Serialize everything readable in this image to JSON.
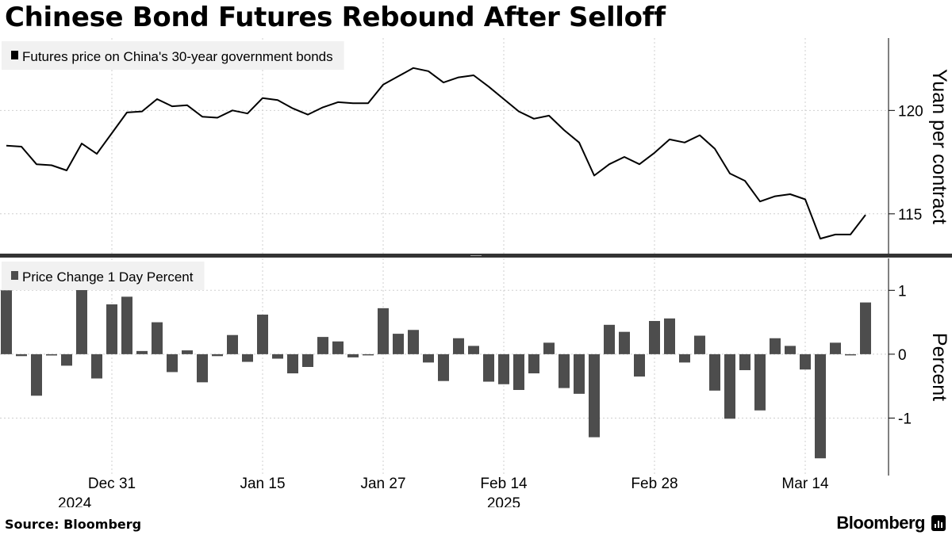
{
  "title": "Chinese Bond Futures Rebound After Selloff",
  "footer": {
    "source": "Source: Bloomberg",
    "brand": "Bloomberg"
  },
  "chart_data": [
    {
      "type": "line",
      "legend": "Futures price on China's 30-year government bonds",
      "ylabel": "Yuan per contract",
      "yticks": [
        115,
        120
      ],
      "ylim": [
        113,
        123.5
      ],
      "grid": true,
      "legend_position": "top-left",
      "color": "#000000",
      "values": [
        118.3,
        118.25,
        117.4,
        117.35,
        117.1,
        118.4,
        117.9,
        118.9,
        119.9,
        119.95,
        120.55,
        120.2,
        120.25,
        119.7,
        119.65,
        120.0,
        119.85,
        120.6,
        120.5,
        120.1,
        119.8,
        120.15,
        120.4,
        120.35,
        120.35,
        121.25,
        121.65,
        122.05,
        121.9,
        121.35,
        121.6,
        121.7,
        121.15,
        120.55,
        119.95,
        119.6,
        119.75,
        119.05,
        118.45,
        116.85,
        117.4,
        117.75,
        117.4,
        117.95,
        118.6,
        118.45,
        118.8,
        118.15,
        116.95,
        116.6,
        115.6,
        115.85,
        115.95,
        115.7,
        113.8,
        114.0,
        114.0,
        114.95
      ]
    },
    {
      "type": "bar",
      "legend": "Price Change 1 Day Percent",
      "ylabel": "Percent",
      "yticks": [
        -1,
        0,
        1
      ],
      "ylim": [
        -1.9,
        1.5
      ],
      "grid": true,
      "legend_position": "top-left",
      "color": "#4d4d4d",
      "values": [
        1.0,
        -0.03,
        -0.65,
        -0.02,
        -0.18,
        1.08,
        -0.38,
        0.78,
        0.9,
        0.05,
        0.5,
        -0.28,
        0.06,
        -0.44,
        -0.03,
        0.3,
        -0.12,
        0.62,
        -0.07,
        -0.3,
        -0.2,
        0.27,
        0.2,
        -0.05,
        -0.01,
        0.72,
        0.32,
        0.38,
        -0.13,
        -0.42,
        0.25,
        0.13,
        -0.43,
        -0.47,
        -0.56,
        -0.3,
        0.18,
        -0.53,
        -0.62,
        -1.3,
        0.46,
        0.35,
        -0.35,
        0.52,
        0.56,
        -0.13,
        0.29,
        -0.57,
        -1.01,
        -0.25,
        -0.88,
        0.25,
        0.13,
        -0.24,
        -1.63,
        0.18,
        -0.01,
        0.81
      ]
    }
  ],
  "x_axis": {
    "ticks": [
      {
        "label": "Dec 31",
        "index": 7
      },
      {
        "label": "Jan 15",
        "index": 17
      },
      {
        "label": "Jan 27",
        "index": 25
      },
      {
        "label": "Feb 14",
        "index": 33
      },
      {
        "label": "Feb 28",
        "index": 43
      },
      {
        "label": "Mar 14",
        "index": 53
      }
    ],
    "years": [
      {
        "label": "2024",
        "index": 7
      },
      {
        "label": "2025",
        "index": 33
      }
    ]
  }
}
